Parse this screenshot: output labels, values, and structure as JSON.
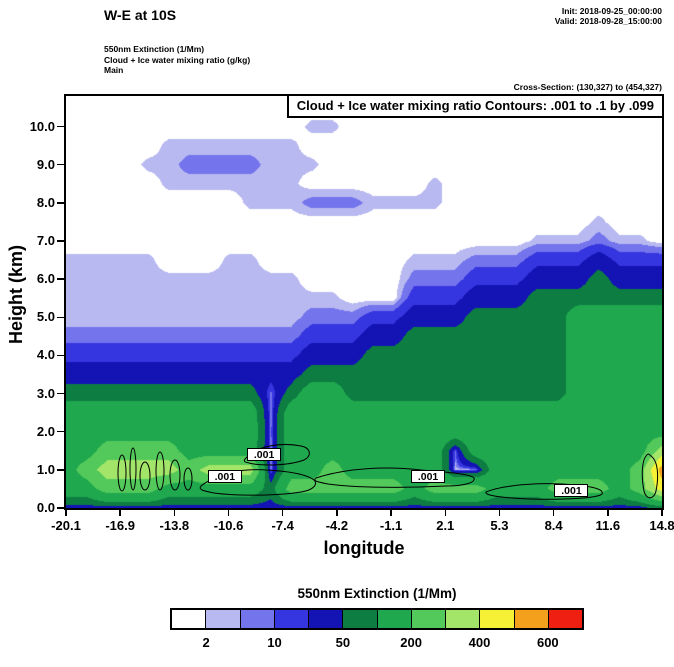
{
  "header": {
    "title": "W-E at 10S",
    "init": "Init: 2018-09-25_00:00:00",
    "valid": "Valid: 2018-09-28_15:00:00",
    "field1": "550nm Extinction  (1/Mm)",
    "field2": "Cloud + Ice water mixing ratio  (g/kg)",
    "model": "Main",
    "cross_section": "Cross-Section: (130,327) to (454,327)"
  },
  "plot": {
    "contour_note": "Cloud + Ice water mixing ratio Contours: .001 to .1 by .099",
    "xticks": [
      "-20.1",
      "-16.9",
      "-13.8",
      "-10.6",
      "-7.4",
      "-4.2",
      "-1.1",
      "2.1",
      "5.3",
      "8.4",
      "11.6",
      "14.8"
    ],
    "yticks": [
      "0.0",
      "1.0",
      "2.0",
      "3.0",
      "4.0",
      "5.0",
      "6.0",
      "7.0",
      "8.0",
      "9.0",
      "10.0"
    ],
    "contour_labels": [
      {
        "text": ".001",
        "lon": -10.8,
        "h": 0.8
      },
      {
        "text": ".001",
        "lon": -8.5,
        "h": 1.4
      },
      {
        "text": ".001",
        "lon": 1.1,
        "h": 0.8
      },
      {
        "text": ".001",
        "lon": 9.5,
        "h": 0.45
      }
    ]
  },
  "legend": {
    "title": "550nm Extinction  (1/Mm)",
    "tick_labels": [
      "2",
      "10",
      "50",
      "200",
      "400",
      "600"
    ],
    "label_boundary_indices": [
      1,
      3,
      5,
      7,
      9,
      11
    ]
  },
  "chart_data": {
    "type": "heatmap",
    "title": "W-E at 10S cross-section: 550nm Extinction (1/Mm) filled contours with Cloud + Ice water mixing ratio (g/kg) line contours .001 to .1 by .099",
    "xlabel": "longitude",
    "ylabel": "Height (km)",
    "units": "1/Mm",
    "xlim": [
      -20.1,
      14.8
    ],
    "ylim": [
      0,
      10.8
    ],
    "grid_on": false,
    "legend_position": "bottom",
    "levels": [
      2,
      5,
      10,
      20,
      50,
      100,
      200,
      300,
      400,
      500,
      600
    ],
    "level_labels_shown": [
      "2",
      "10",
      "50",
      "200",
      "400",
      "600"
    ],
    "colors": [
      "#ffffff",
      "#b9b9f1",
      "#7474ec",
      "#3636e0",
      "#1414b4",
      "#0d7d42",
      "#1fa84e",
      "#52c95a",
      "#a2e568",
      "#f6f135",
      "#f5a01c",
      "#ef2012"
    ],
    "overlay_contours": {
      "variable": "Cloud + Ice water mixing ratio (g/kg)",
      "levels": [
        0.001,
        0.1
      ],
      "label": ".001"
    },
    "x": [
      -20.1,
      -18.9,
      -17.7,
      -16.5,
      -15.3,
      -14.1,
      -12.9,
      -11.7,
      -10.5,
      -9.3,
      -8.1,
      -6.9,
      -5.7,
      -4.5,
      -3.3,
      -2.1,
      -0.9,
      0.3,
      1.5,
      2.7,
      3.9,
      5.1,
      6.3,
      7.5,
      8.7,
      9.9,
      11.1,
      12.3,
      13.5,
      14.8
    ],
    "y": [
      0,
      0.5,
      1,
      1.5,
      2,
      2.5,
      3,
      3.5,
      4,
      4.5,
      5,
      5.5,
      6,
      6.5,
      7,
      7.5,
      8,
      8.5,
      9,
      9.5,
      10,
      10.5,
      11
    ],
    "grid": [
      [
        30,
        30,
        30,
        30,
        30,
        30,
        30,
        30,
        30,
        30,
        30,
        30,
        30,
        30,
        30,
        30,
        30,
        30,
        30,
        30,
        30,
        30,
        30,
        30,
        30,
        30,
        30,
        30,
        30,
        70
      ],
      [
        150,
        150,
        250,
        250,
        250,
        150,
        150,
        150,
        150,
        150,
        70,
        250,
        250,
        250,
        250,
        250,
        250,
        150,
        250,
        250,
        250,
        150,
        150,
        150,
        250,
        250,
        250,
        150,
        250,
        450
      ],
      [
        150,
        250,
        350,
        350,
        350,
        350,
        250,
        350,
        350,
        350,
        3,
        150,
        150,
        250,
        150,
        150,
        150,
        150,
        150,
        3,
        3,
        150,
        150,
        150,
        150,
        150,
        150,
        150,
        250,
        550
      ],
      [
        150,
        150,
        250,
        250,
        250,
        250,
        150,
        150,
        150,
        150,
        3,
        150,
        150,
        150,
        150,
        150,
        150,
        150,
        150,
        7,
        150,
        150,
        150,
        150,
        150,
        150,
        150,
        150,
        150,
        350
      ],
      [
        150,
        150,
        150,
        150,
        150,
        150,
        150,
        150,
        150,
        150,
        7,
        150,
        150,
        150,
        150,
        150,
        150,
        150,
        150,
        150,
        150,
        150,
        150,
        150,
        150,
        150,
        150,
        150,
        150,
        150
      ],
      [
        150,
        150,
        150,
        150,
        150,
        150,
        150,
        150,
        150,
        150,
        3,
        150,
        150,
        150,
        150,
        150,
        150,
        150,
        150,
        150,
        150,
        150,
        150,
        150,
        150,
        150,
        150,
        150,
        150,
        150
      ],
      [
        70,
        70,
        70,
        70,
        70,
        70,
        70,
        70,
        70,
        70,
        7,
        70,
        150,
        150,
        70,
        70,
        70,
        70,
        70,
        70,
        70,
        70,
        70,
        70,
        70,
        150,
        150,
        150,
        150,
        150
      ],
      [
        30,
        30,
        30,
        30,
        30,
        30,
        30,
        30,
        30,
        30,
        30,
        30,
        70,
        70,
        70,
        70,
        70,
        70,
        70,
        70,
        70,
        70,
        70,
        70,
        70,
        150,
        150,
        150,
        150,
        150
      ],
      [
        15,
        15,
        15,
        15,
        15,
        15,
        15,
        15,
        15,
        15,
        15,
        15,
        30,
        30,
        30,
        70,
        70,
        70,
        70,
        70,
        70,
        70,
        70,
        70,
        70,
        150,
        150,
        150,
        150,
        150
      ],
      [
        7,
        7,
        7,
        7,
        7,
        7,
        7,
        7,
        7,
        7,
        7,
        7,
        15,
        15,
        15,
        30,
        30,
        70,
        70,
        70,
        70,
        70,
        70,
        70,
        70,
        150,
        150,
        150,
        150,
        150
      ],
      [
        3,
        3,
        3,
        3,
        3,
        3,
        3,
        3,
        3,
        3,
        3,
        3,
        7,
        7,
        7,
        15,
        15,
        30,
        30,
        30,
        70,
        70,
        70,
        70,
        70,
        150,
        150,
        150,
        150,
        150
      ],
      [
        3,
        3,
        3,
        3,
        3,
        3,
        3,
        3,
        3,
        3,
        3,
        3,
        3,
        3,
        0,
        0,
        0,
        15,
        15,
        15,
        30,
        30,
        30,
        70,
        70,
        70,
        70,
        70,
        70,
        70
      ],
      [
        3,
        3,
        3,
        3,
        3,
        3,
        3,
        3,
        3,
        3,
        3,
        3,
        0,
        0,
        0,
        0,
        0,
        7,
        7,
        7,
        15,
        15,
        15,
        30,
        30,
        30,
        70,
        30,
        30,
        30
      ],
      [
        3,
        3,
        3,
        3,
        3,
        0,
        0,
        0,
        3,
        3,
        0,
        0,
        0,
        0,
        0,
        0,
        0,
        3,
        3,
        3,
        7,
        7,
        7,
        15,
        15,
        15,
        30,
        15,
        15,
        15
      ],
      [
        0,
        0,
        0,
        0,
        0,
        0,
        0,
        0,
        0,
        0,
        0,
        0,
        0,
        0,
        0,
        0,
        0,
        0,
        0,
        0,
        0,
        0,
        0,
        3,
        3,
        3,
        7,
        3,
        3,
        0
      ],
      [
        0,
        0,
        0,
        0,
        0,
        0,
        0,
        0,
        0,
        0,
        0,
        0,
        0,
        0,
        0,
        0,
        0,
        0,
        0,
        0,
        0,
        0,
        0,
        0,
        0,
        0,
        3,
        0,
        0,
        0
      ],
      [
        0,
        0,
        0,
        0,
        0,
        0,
        0,
        0,
        0,
        3,
        3,
        3,
        7,
        7,
        7,
        3,
        3,
        3,
        3,
        0,
        0,
        0,
        0,
        0,
        0,
        0,
        0,
        0,
        0,
        0
      ],
      [
        0,
        0,
        0,
        0,
        0,
        3,
        3,
        3,
        3,
        3,
        3,
        3,
        0,
        0,
        0,
        0,
        0,
        0,
        3,
        0,
        0,
        0,
        0,
        0,
        0,
        0,
        0,
        0,
        0,
        0
      ],
      [
        0,
        0,
        0,
        0,
        3,
        3,
        7,
        7,
        7,
        7,
        3,
        3,
        3,
        0,
        0,
        0,
        0,
        0,
        0,
        0,
        0,
        0,
        0,
        0,
        0,
        0,
        0,
        0,
        0,
        0
      ],
      [
        0,
        0,
        0,
        0,
        0,
        3,
        3,
        3,
        3,
        3,
        3,
        3,
        0,
        0,
        0,
        0,
        0,
        0,
        0,
        0,
        0,
        0,
        0,
        0,
        0,
        0,
        0,
        0,
        0,
        0
      ],
      [
        0,
        0,
        0,
        0,
        0,
        0,
        0,
        0,
        0,
        0,
        0,
        0,
        3,
        3,
        0,
        0,
        0,
        0,
        0,
        0,
        0,
        0,
        0,
        0,
        0,
        0,
        0,
        0,
        0,
        0
      ],
      [
        0,
        0,
        0,
        0,
        0,
        0,
        0,
        0,
        0,
        0,
        0,
        0,
        0,
        0,
        0,
        0,
        0,
        0,
        0,
        0,
        0,
        0,
        0,
        0,
        0,
        0,
        0,
        0,
        0,
        0
      ],
      [
        0,
        0,
        0,
        0,
        0,
        0,
        0,
        0,
        0,
        0,
        0,
        0,
        0,
        0,
        0,
        0,
        0,
        0,
        0,
        0,
        0,
        0,
        0,
        0,
        0,
        0,
        0,
        0,
        0,
        0
      ]
    ]
  }
}
